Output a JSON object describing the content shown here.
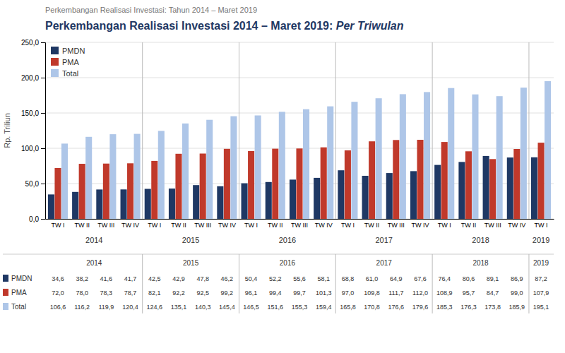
{
  "chart_data": {
    "type": "bar",
    "subtitle": "Perkembangan Realisasi Investasi: Tahun 2014 – Maret 2019",
    "title": "Perkembangan Realisasi Investasi 2014 – Maret 2019: ",
    "title_italic": "Per Triwulan",
    "ylabel": "Rp. Triliun",
    "categories": [
      "TW I",
      "TW II",
      "TW III",
      "TW IV",
      "TW I",
      "TW II",
      "TW III",
      "TW IV",
      "TW I",
      "TW II",
      "TW III",
      "TW IV",
      "TW I",
      "TW II",
      "TW III",
      "TW IV",
      "TW I",
      "TW II",
      "TW III",
      "TW IV",
      "TW I"
    ],
    "category_groups": [
      {
        "label": "2014",
        "start": 0,
        "end": 4
      },
      {
        "label": "2015",
        "start": 4,
        "end": 8
      },
      {
        "label": "2016",
        "start": 8,
        "end": 12
      },
      {
        "label": "2017",
        "start": 12,
        "end": 16
      },
      {
        "label": "2018",
        "start": 16,
        "end": 20
      },
      {
        "label": "2019",
        "start": 20,
        "end": 21
      }
    ],
    "series": [
      {
        "name": "PMDN",
        "color": "#1f3864",
        "values": [
          34.6,
          38.2,
          41.6,
          41.7,
          42.5,
          42.9,
          47.8,
          46.2,
          50.4,
          52.2,
          55.6,
          58.1,
          68.8,
          61.0,
          64.9,
          67.6,
          76.4,
          80.6,
          89.1,
          86.9,
          87.2
        ],
        "value_labels": [
          "34,6",
          "38,2",
          "41,6",
          "41,7",
          "42,5",
          "42,9",
          "47,8",
          "46,2",
          "50,4",
          "52,2",
          "55,6",
          "58,1",
          "68,8",
          "61,0",
          "64,9",
          "67,6",
          "76,4",
          "80,6",
          "89,1",
          "86,9",
          "87,2"
        ]
      },
      {
        "name": "PMA",
        "color": "#c0392b",
        "values": [
          72.0,
          78.0,
          78.3,
          78.7,
          82.1,
          92.2,
          92.5,
          99.2,
          96.1,
          99.4,
          99.7,
          101.3,
          97.0,
          109.8,
          111.7,
          112.0,
          108.9,
          95.7,
          84.7,
          99.0,
          107.9
        ],
        "value_labels": [
          "72,0",
          "78,0",
          "78,3",
          "78,7",
          "82,1",
          "92,2",
          "92,5",
          "99,2",
          "96,1",
          "99,4",
          "99,7",
          "101,3",
          "97,0",
          "109,8",
          "111,7",
          "112,0",
          "108,9",
          "95,7",
          "84,7",
          "99,0",
          "107,9"
        ]
      },
      {
        "name": "Total",
        "color": "#aec6e8",
        "values": [
          106.6,
          116.2,
          119.9,
          120.4,
          124.6,
          135.1,
          140.3,
          145.4,
          146.5,
          151.6,
          155.3,
          159.4,
          165.8,
          170.8,
          176.6,
          179.6,
          185.3,
          176.3,
          173.8,
          185.9,
          195.1
        ],
        "value_labels": [
          "106,6",
          "116,2",
          "119,9",
          "120,4",
          "124,6",
          "135,1",
          "140,3",
          "145,4",
          "146,5",
          "151,6",
          "155,3",
          "159,4",
          "165,8",
          "170,8",
          "176,6",
          "179,6",
          "185,3",
          "176,3",
          "173,8",
          "185,9",
          "195,1"
        ]
      }
    ],
    "ylim": [
      0,
      250
    ],
    "yticks": [
      {
        "value": 0,
        "label": "0,0"
      },
      {
        "value": 50,
        "label": "50,0"
      },
      {
        "value": 100,
        "label": "100,0"
      },
      {
        "value": 150,
        "label": "150,0"
      },
      {
        "value": 200,
        "label": "200,0"
      },
      {
        "value": 250,
        "label": "250,0"
      }
    ],
    "grid": true,
    "legend": "upper left"
  }
}
